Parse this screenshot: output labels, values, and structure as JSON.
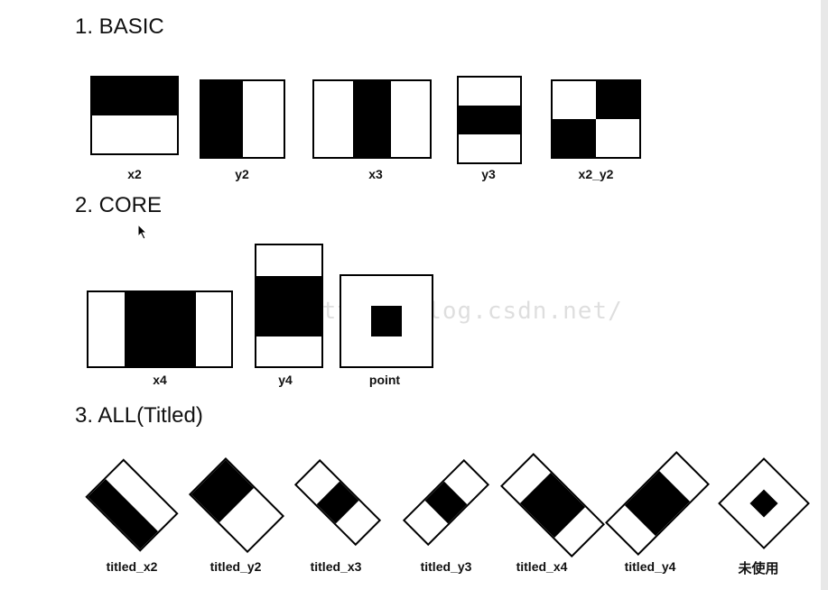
{
  "sections": {
    "basic": "1. BASIC",
    "core": "2. CORE",
    "all": "3. ALL(Titled)"
  },
  "basic": {
    "x2": "x2",
    "y2": "y2",
    "x3": "x3",
    "y3": "y3",
    "x2_y2": "x2_y2"
  },
  "core": {
    "x4": "x4",
    "y4": "y4",
    "point": "point"
  },
  "tilted": {
    "x2": "titled_x2",
    "y2": "titled_y2",
    "x3": "titled_x3",
    "y3": "titled_y3",
    "x4": "titled_x4",
    "y4": "titled_y4",
    "unused": "未使用"
  },
  "watermark": "http://blog.csdn.net/"
}
